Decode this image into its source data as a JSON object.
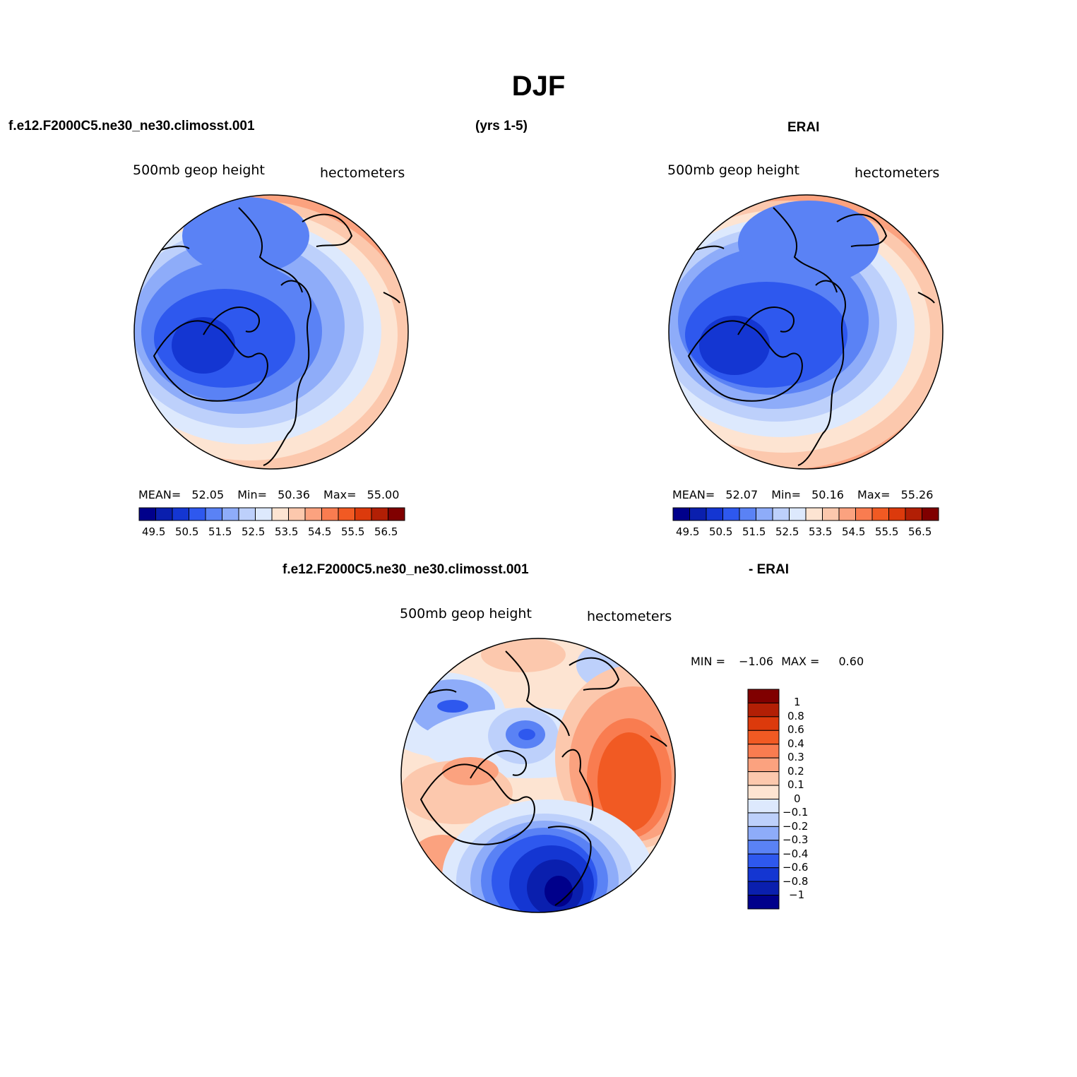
{
  "figure": {
    "title": "DJF",
    "header": {
      "left": "f.e12.F2000C5.ne30_ne30.climosst.001",
      "middle": "(yrs 1-5)",
      "right": "ERAI"
    },
    "diff_header": {
      "left": "f.e12.F2000C5.ne30_ne30.climosst.001",
      "right": "- ERAI"
    }
  },
  "panels": [
    {
      "id": "model",
      "variable": "500mb  geop  height",
      "units": "hectometers",
      "stats": {
        "mean_label": "MEAN=",
        "mean": "52.05",
        "min_label": "Min=",
        "min": "50.36",
        "max_label": "Max=",
        "max": "55.00"
      }
    },
    {
      "id": "obs",
      "variable": "500mb  geop  height",
      "units": "hectometers",
      "stats": {
        "mean_label": "MEAN=",
        "mean": "52.07",
        "min_label": "Min=",
        "min": "50.16",
        "max_label": "Max=",
        "max": "55.26"
      }
    },
    {
      "id": "diff",
      "variable": "500mb  geop  height",
      "units": "hectometers",
      "stats": {
        "min_label": "MIN =",
        "min": "−1.06",
        "max_label": "MAX =",
        "max": "0.60"
      }
    }
  ],
  "colorbars": {
    "absolute": {
      "colors": [
        "#00008b",
        "#0a1fae",
        "#1436d2",
        "#2e58ee",
        "#5a82f5",
        "#8eacf9",
        "#bdd0fb",
        "#dde9fd",
        "#fde4d2",
        "#fcc8ad",
        "#fba27f",
        "#f97c50",
        "#f15a23",
        "#dc3a0c",
        "#b21f05",
        "#800000"
      ],
      "tick_labels": [
        "49.5",
        "50.5",
        "51.5",
        "52.5",
        "53.5",
        "54.5",
        "55.5",
        "56.5"
      ]
    },
    "difference": {
      "colors": [
        "#00008b",
        "#0a1fae",
        "#1436d2",
        "#2e58ee",
        "#5a82f5",
        "#8eacf9",
        "#bdd0fb",
        "#dde9fd",
        "#fde4d2",
        "#fcc8ad",
        "#fba27f",
        "#f97c50",
        "#f15a23",
        "#dc3a0c",
        "#b21f05",
        "#800000"
      ],
      "tick_labels": [
        "1",
        "0.8",
        "0.6",
        "0.4",
        "0.3",
        "0.2",
        "0.1",
        "0",
        "−0.1",
        "−0.2",
        "−0.3",
        "−0.4",
        "−0.6",
        "−0.8",
        "−1"
      ]
    }
  }
}
